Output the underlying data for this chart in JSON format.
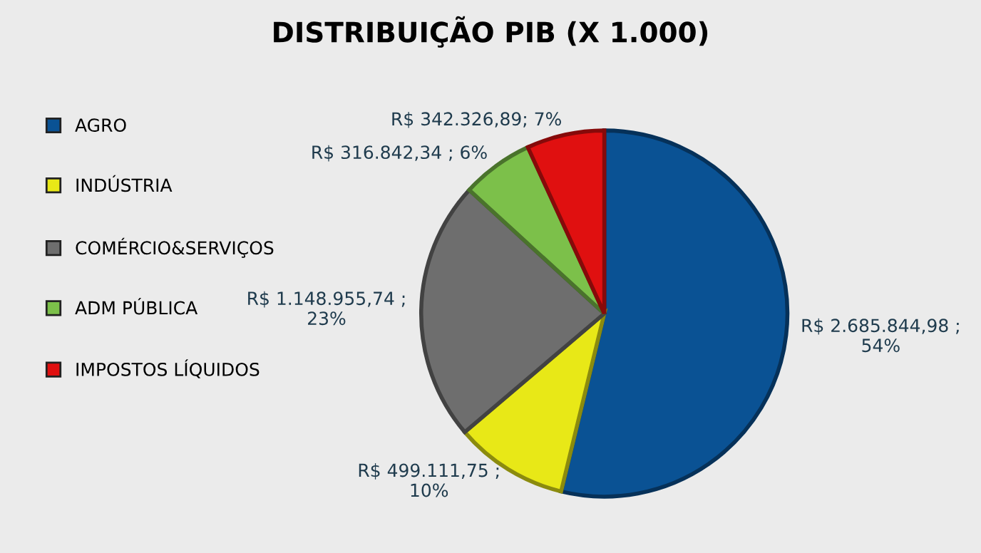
{
  "chart_data": {
    "type": "pie",
    "title": "DISTRIBUIÇÃO PIB (X 1.000)",
    "categories": [
      "AGRO",
      "INDÚSTRIA",
      "COMÉRCIO&SERVIÇOS",
      "ADM PÚBLICA",
      "IMPOSTOS LÍQUIDOS"
    ],
    "values": [
      2685844.98,
      499111.75,
      1148955.74,
      316842.34,
      342326.89
    ],
    "colors": [
      "#0a5294",
      "#e8e817",
      "#6e6e6e",
      "#7cc04a",
      "#e01010"
    ],
    "value_labels": [
      "R$ 2.685.844,98 ;\n54%",
      "R$ 499.111,75 ;\n10%",
      "R$ 1.148.955,74 ;\n23%",
      "R$ 316.842,34 ; 6%",
      "R$ 342.326,89; 7%"
    ],
    "legend": "left"
  }
}
